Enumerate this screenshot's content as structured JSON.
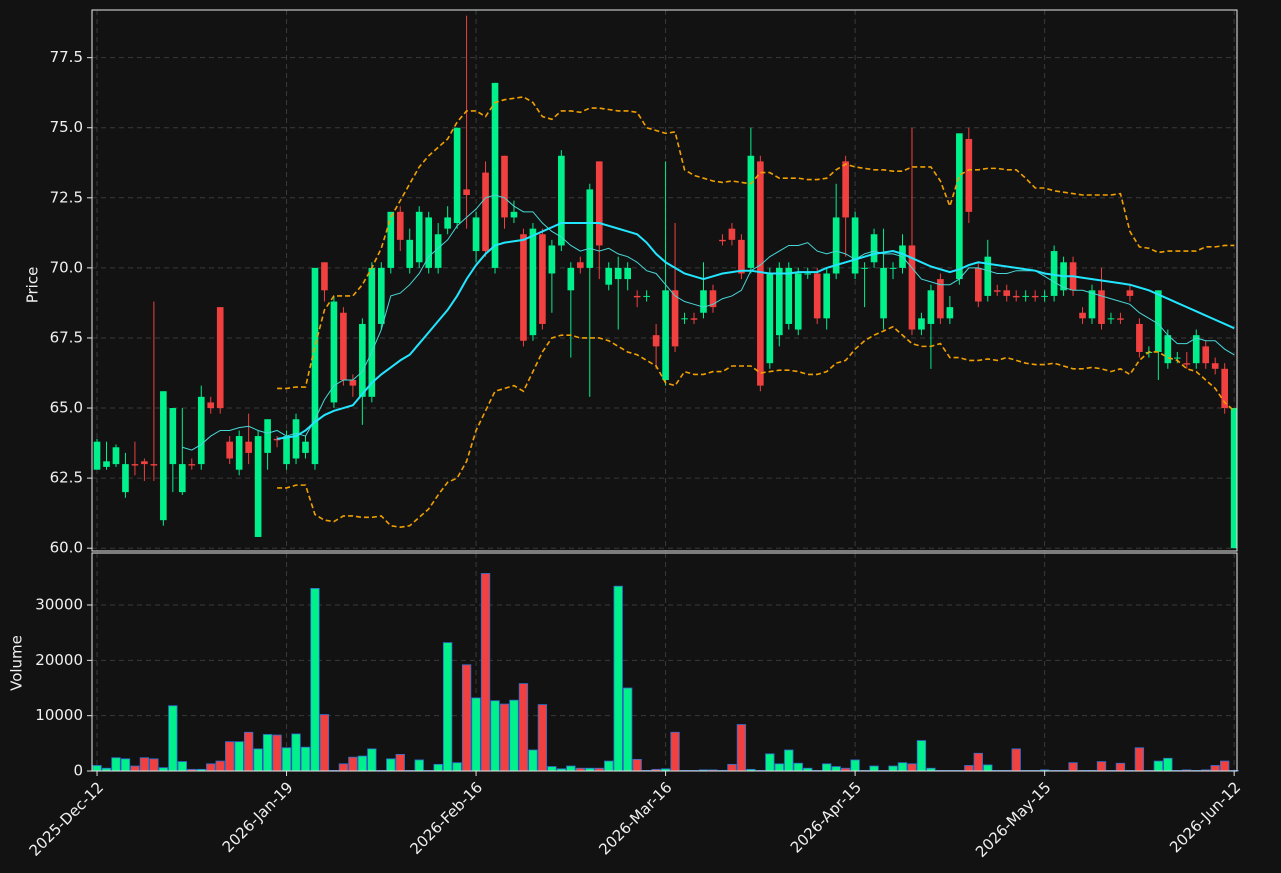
{
  "chart_data": {
    "type": "candlestick",
    "ylabel": "Price",
    "ylim": [
      59.9,
      79.2
    ],
    "yticks": [
      {
        "value": 60,
        "label": "60.0"
      },
      {
        "value": 62.5,
        "label": "62.5"
      },
      {
        "value": 65,
        "label": "65.0"
      },
      {
        "value": 67.5,
        "label": "67.5"
      },
      {
        "value": 70,
        "label": "70.0"
      },
      {
        "value": 72.5,
        "label": "72.5"
      },
      {
        "value": 75,
        "label": "75.0"
      },
      {
        "value": 77.5,
        "label": "77.5"
      }
    ],
    "grid": true,
    "up_color": "#00f08c",
    "down_color": "#f04040",
    "categories": [
      "2025-Dec-12",
      null,
      null,
      null,
      null,
      null,
      null,
      null,
      null,
      null,
      null,
      null,
      null,
      null,
      null,
      null,
      null,
      null,
      null,
      null,
      "2026-Jan-19",
      null,
      null,
      null,
      null,
      null,
      null,
      null,
      null,
      null,
      null,
      null,
      null,
      null,
      null,
      null,
      null,
      null,
      null,
      null,
      "2026-Feb-16",
      null,
      null,
      null,
      null,
      null,
      null,
      null,
      null,
      null,
      null,
      null,
      null,
      null,
      null,
      null,
      null,
      null,
      null,
      null,
      "2026-Mar-16",
      null,
      null,
      null,
      null,
      null,
      null,
      null,
      null,
      null,
      null,
      null,
      null,
      null,
      null,
      null,
      null,
      null,
      null,
      null,
      "2026-Apr-15",
      null,
      null,
      null,
      null,
      null,
      null,
      null,
      null,
      null,
      null,
      null,
      null,
      null,
      null,
      null,
      null,
      null,
      null,
      null,
      "2026-May-15",
      null,
      null,
      null,
      null,
      null,
      null,
      null,
      null,
      null,
      null,
      null,
      null,
      null,
      null,
      null,
      null,
      null,
      null,
      null,
      "2026-Jun-12"
    ],
    "open": [
      62.8,
      62.9,
      63.0,
      62.0,
      63.0,
      63.1,
      63.0,
      61.0,
      63.0,
      62.0,
      63.0,
      63.0,
      65.2,
      68.6,
      63.8,
      62.8,
      63.8,
      60.4,
      63.4,
      63.9,
      63.0,
      63.2,
      63.4,
      63.0,
      70.2,
      65.2,
      68.4,
      66.0,
      65.4,
      65.4,
      68.0,
      70.0,
      72.0,
      70.0,
      70.2,
      70.0,
      70.0,
      71.4,
      71.6,
      72.8,
      70.6,
      73.4,
      70.0,
      74.0,
      71.8,
      71.2,
      67.6,
      71.2,
      69.8,
      70.8,
      69.2,
      70.2,
      70.0,
      73.8,
      69.4,
      69.6,
      69.6,
      69.0,
      69.0,
      67.6,
      66.0,
      69.2,
      68.2,
      68.2,
      68.4,
      69.2,
      71.0,
      71.4,
      71.0,
      70.0,
      73.8,
      66.6,
      67.6,
      68.0,
      67.8,
      69.8,
      69.8,
      68.2,
      69.8,
      73.8,
      69.8,
      70.0,
      70.2,
      68.2,
      70.0,
      70.0,
      70.8,
      67.8,
      68.0,
      69.6,
      68.2,
      69.6,
      74.6,
      70.0,
      69.0,
      69.2,
      69.2,
      69.0,
      69.0,
      69.0,
      69.0,
      69.0,
      69.2,
      70.2,
      68.4,
      68.2,
      69.2,
      68.2,
      68.2,
      69.2,
      68.0,
      67.0,
      67.0,
      66.6,
      66.8,
      66.6,
      66.6,
      67.2,
      66.6,
      66.4,
      60.0
    ],
    "high": [
      63.9,
      63.8,
      63.7,
      63.4,
      63.8,
      63.2,
      68.8,
      65.6,
      65.0,
      65.0,
      63.2,
      65.8,
      65.4,
      68.6,
      64.0,
      64.2,
      64.8,
      64.2,
      64.6,
      64.0,
      64.2,
      64.8,
      64.0,
      70.0,
      70.2,
      69.0,
      68.6,
      66.2,
      68.2,
      70.2,
      70.2,
      72.0,
      72.2,
      71.4,
      72.2,
      72.0,
      71.6,
      72.2,
      75.0,
      79.0,
      72.0,
      73.8,
      76.6,
      74.0,
      72.4,
      71.4,
      71.6,
      71.4,
      71.0,
      74.2,
      70.2,
      70.4,
      73.0,
      73.8,
      70.2,
      70.4,
      70.2,
      69.2,
      69.2,
      68.0,
      73.8,
      71.6,
      68.4,
      68.4,
      70.2,
      69.4,
      71.2,
      71.6,
      71.2,
      75.0,
      74.0,
      70.0,
      70.2,
      70.2,
      70.0,
      70.0,
      70.0,
      70.0,
      73.0,
      74.0,
      72.0,
      70.2,
      71.4,
      71.4,
      70.2,
      71.2,
      75.0,
      68.4,
      69.4,
      69.8,
      69.0,
      74.8,
      75.0,
      70.2,
      71.0,
      69.4,
      69.4,
      69.2,
      69.2,
      69.2,
      69.2,
      70.8,
      70.4,
      70.4,
      68.6,
      69.4,
      70.0,
      68.4,
      68.4,
      69.4,
      68.2,
      67.2,
      69.2,
      67.8,
      67.0,
      67.0,
      67.8,
      67.4,
      66.8,
      66.6,
      65.0
    ],
    "low": [
      62.8,
      62.8,
      62.9,
      61.8,
      62.6,
      62.4,
      62.4,
      60.8,
      62.0,
      61.9,
      62.8,
      62.8,
      64.8,
      64.8,
      63.0,
      62.6,
      63.0,
      60.4,
      62.8,
      63.6,
      62.8,
      63.0,
      63.2,
      62.8,
      68.8,
      65.0,
      65.8,
      65.4,
      64.4,
      65.2,
      67.8,
      69.8,
      70.6,
      69.8,
      70.0,
      69.8,
      69.8,
      71.2,
      71.4,
      71.4,
      70.2,
      70.4,
      69.8,
      71.4,
      71.6,
      67.2,
      67.4,
      67.8,
      68.4,
      70.6,
      66.8,
      69.8,
      65.4,
      69.6,
      69.2,
      67.8,
      69.2,
      68.6,
      68.8,
      66.4,
      65.8,
      67.0,
      68.0,
      68.0,
      68.2,
      68.4,
      70.8,
      70.8,
      69.6,
      69.8,
      65.6,
      66.4,
      67.2,
      67.8,
      67.6,
      69.6,
      68.0,
      67.8,
      69.6,
      70.4,
      69.6,
      68.6,
      70.0,
      67.8,
      69.6,
      69.8,
      67.6,
      67.6,
      66.4,
      68.0,
      68.0,
      69.4,
      71.6,
      68.6,
      68.8,
      69.0,
      68.8,
      68.8,
      68.8,
      68.8,
      68.8,
      68.8,
      69.0,
      69.0,
      68.0,
      68.0,
      67.8,
      68.0,
      68.0,
      68.8,
      66.8,
      66.8,
      66.0,
      66.4,
      66.6,
      66.4,
      66.4,
      66.4,
      66.2,
      64.8,
      60.0
    ],
    "close": [
      63.8,
      63.1,
      63.6,
      63.0,
      62.95,
      63.0,
      62.95,
      65.6,
      65.0,
      63.0,
      62.95,
      65.4,
      65.0,
      65.0,
      63.2,
      64.0,
      63.4,
      64.0,
      64.6,
      63.85,
      64.0,
      64.6,
      63.8,
      70.0,
      69.2,
      68.8,
      66.0,
      65.8,
      68.0,
      70.0,
      70.0,
      72.0,
      71.0,
      71.0,
      72.0,
      71.8,
      71.2,
      71.8,
      75.0,
      72.6,
      71.8,
      70.6,
      76.6,
      71.8,
      72.0,
      67.4,
      71.4,
      68.0,
      70.8,
      74.0,
      70.0,
      70.0,
      72.8,
      70.8,
      70.0,
      70.0,
      70.0,
      68.95,
      69.0,
      67.2,
      69.2,
      67.2,
      68.2,
      68.15,
      69.2,
      68.6,
      70.95,
      71.0,
      69.8,
      74.0,
      65.8,
      69.8,
      70.0,
      70.0,
      69.8,
      69.8,
      68.2,
      69.8,
      71.8,
      71.8,
      71.8,
      70.0,
      71.2,
      70.0,
      70.0,
      70.8,
      67.8,
      68.2,
      69.2,
      68.2,
      68.6,
      74.8,
      72.0,
      68.8,
      70.4,
      69.15,
      69.0,
      68.95,
      69.0,
      68.95,
      69.0,
      70.6,
      70.2,
      69.2,
      68.2,
      69.2,
      68.0,
      68.2,
      68.15,
      69.0,
      67.0,
      67.0,
      69.2,
      67.6,
      66.8,
      66.55,
      67.6,
      66.6,
      66.4,
      65.0,
      65.0
    ],
    "overlays": [
      {
        "color": "#48d8d8",
        "width": 1,
        "dashed": false,
        "values": [
          null,
          null,
          null,
          null,
          null,
          null,
          null,
          null,
          null,
          63.6,
          63.5,
          63.7,
          64.0,
          64.2,
          64.2,
          64.3,
          64.35,
          64.2,
          64.1,
          64.2,
          64.0,
          64.1,
          64.0,
          64.6,
          65.3,
          65.8,
          66.0,
          66.0,
          66.3,
          67.0,
          67.8,
          69.0,
          69.1,
          69.4,
          69.8,
          70.4,
          70.7,
          71.0,
          71.5,
          71.8,
          72.1,
          72.5,
          72.6,
          72.5,
          72.2,
          72.0,
          72.0,
          71.6,
          71.3,
          71.1,
          70.8,
          70.6,
          70.7,
          70.6,
          70.7,
          70.5,
          70.4,
          70.2,
          69.9,
          69.8,
          69.4,
          69.0,
          68.8,
          68.7,
          68.6,
          68.7,
          68.9,
          69.0,
          69.2,
          69.9,
          70.1,
          70.4,
          70.6,
          70.8,
          70.8,
          70.9,
          70.6,
          70.5,
          70.6,
          70.5,
          70.3,
          70.5,
          70.6,
          70.5,
          70.5,
          70.4,
          70.0,
          69.6,
          69.5,
          69.4,
          69.4,
          69.6,
          70.0,
          70.0,
          69.9,
          69.8,
          69.8,
          69.9,
          69.9,
          69.9,
          69.7,
          69.5,
          69.3,
          69.2,
          69.2,
          69.1,
          69.0,
          68.9,
          68.8,
          68.7,
          68.4,
          68.2,
          68.0,
          67.6,
          67.3,
          67.3,
          67.5,
          67.4,
          67.4,
          67.1,
          66.9
        ]
      },
      {
        "color": "#22e6ff",
        "width": 2,
        "dashed": false,
        "values": [
          null,
          null,
          null,
          null,
          null,
          null,
          null,
          null,
          null,
          null,
          null,
          null,
          null,
          null,
          null,
          null,
          null,
          null,
          null,
          63.9,
          63.95,
          64.0,
          64.2,
          64.5,
          64.75,
          64.9,
          65.0,
          65.1,
          65.5,
          65.9,
          66.2,
          66.45,
          66.7,
          66.9,
          67.3,
          67.7,
          68.1,
          68.5,
          69.0,
          69.6,
          70.1,
          70.5,
          70.8,
          70.9,
          70.95,
          71.0,
          71.15,
          71.3,
          71.45,
          71.6,
          71.6,
          71.6,
          71.6,
          71.6,
          71.5,
          71.4,
          71.3,
          71.2,
          70.9,
          70.5,
          70.2,
          70.0,
          69.8,
          69.7,
          69.6,
          69.7,
          69.8,
          69.85,
          69.9,
          69.9,
          69.85,
          69.8,
          69.8,
          69.8,
          69.85,
          69.85,
          69.85,
          70.0,
          70.1,
          70.2,
          70.3,
          70.4,
          70.5,
          70.55,
          70.6,
          70.5,
          70.35,
          70.2,
          70.05,
          69.95,
          69.85,
          69.95,
          70.1,
          70.2,
          70.15,
          70.1,
          70.05,
          70.0,
          69.95,
          69.9,
          69.8,
          69.75,
          69.7,
          69.7,
          69.65,
          69.6,
          69.55,
          69.5,
          69.45,
          69.4,
          69.3,
          69.2,
          69.05,
          68.9,
          68.75,
          68.6,
          68.45,
          68.3,
          68.15,
          68.0,
          67.85
        ]
      },
      {
        "color": "#f0a000",
        "width": 1.6,
        "dashed": true,
        "values": [
          null,
          null,
          null,
          null,
          null,
          null,
          null,
          null,
          null,
          null,
          null,
          null,
          null,
          null,
          null,
          null,
          null,
          null,
          null,
          65.7,
          65.7,
          65.75,
          65.75,
          67.2,
          68.5,
          69.0,
          69.0,
          69.0,
          69.4,
          70.0,
          70.7,
          71.8,
          72.4,
          73.0,
          73.6,
          74.0,
          74.3,
          74.6,
          75.2,
          75.6,
          75.6,
          75.4,
          75.9,
          76.0,
          76.05,
          76.1,
          75.9,
          75.4,
          75.3,
          75.6,
          75.6,
          75.55,
          75.7,
          75.7,
          75.65,
          75.6,
          75.6,
          75.55,
          75.0,
          74.9,
          74.8,
          74.85,
          73.5,
          73.3,
          73.2,
          73.1,
          73.05,
          73.1,
          73.05,
          73.0,
          73.4,
          73.4,
          73.2,
          73.2,
          73.2,
          73.15,
          73.15,
          73.2,
          73.5,
          73.7,
          73.6,
          73.55,
          73.5,
          73.5,
          73.45,
          73.45,
          73.6,
          73.6,
          73.6,
          73.1,
          72.2,
          73.3,
          73.5,
          73.5,
          73.55,
          73.55,
          73.5,
          73.5,
          73.2,
          72.85,
          72.85,
          72.75,
          72.7,
          72.65,
          72.6,
          72.6,
          72.6,
          72.6,
          72.65,
          71.3,
          70.75,
          70.7,
          70.55,
          70.6,
          70.6,
          70.6,
          70.6,
          70.75,
          70.75,
          70.8,
          70.8
        ]
      },
      {
        "color": "#f0a000",
        "width": 1.6,
        "dashed": true,
        "values": [
          null,
          null,
          null,
          null,
          null,
          null,
          null,
          null,
          null,
          null,
          null,
          null,
          null,
          null,
          null,
          null,
          null,
          null,
          null,
          62.15,
          62.15,
          62.25,
          62.25,
          61.2,
          61.0,
          60.95,
          61.15,
          61.15,
          61.1,
          61.1,
          61.15,
          60.8,
          60.75,
          60.8,
          61.1,
          61.4,
          61.9,
          62.35,
          62.5,
          63.1,
          64.2,
          64.9,
          65.6,
          65.7,
          65.8,
          65.6,
          66.3,
          67.0,
          67.5,
          67.6,
          67.6,
          67.5,
          67.5,
          67.5,
          67.4,
          67.2,
          67.0,
          66.9,
          66.7,
          66.5,
          65.9,
          65.8,
          66.3,
          66.2,
          66.2,
          66.3,
          66.3,
          66.5,
          66.5,
          66.5,
          66.25,
          66.3,
          66.35,
          66.35,
          66.3,
          66.2,
          66.2,
          66.3,
          66.6,
          66.7,
          67.1,
          67.4,
          67.6,
          67.75,
          67.9,
          67.6,
          67.3,
          67.2,
          67.2,
          67.3,
          66.8,
          66.8,
          66.7,
          66.7,
          66.75,
          66.7,
          66.8,
          66.7,
          66.6,
          66.55,
          66.55,
          66.6,
          66.5,
          66.4,
          66.4,
          66.45,
          66.4,
          66.3,
          66.4,
          66.2,
          66.7,
          67.0,
          67.0,
          66.8,
          66.7,
          66.4,
          66.3,
          66.0,
          65.7,
          65.2,
          64.9
        ]
      }
    ],
    "volume": {
      "ylabel": "Volume",
      "ylim": [
        0,
        39400
      ],
      "yticks": [
        0,
        10000,
        20000,
        30000
      ],
      "edge_color": "#2f6fd0",
      "values": [
        1000,
        500,
        2400,
        2200,
        900,
        2400,
        2200,
        600,
        11800,
        1700,
        300,
        300,
        1300,
        1800,
        5300,
        5300,
        7000,
        4000,
        6600,
        6500,
        4200,
        6700,
        4300,
        33000,
        10200,
        100,
        1300,
        2500,
        2700,
        4000,
        100,
        2200,
        3000,
        100,
        2000,
        100,
        1200,
        23200,
        1500,
        19200,
        13200,
        35700,
        12700,
        12100,
        12800,
        15800,
        3800,
        12000,
        800,
        400,
        900,
        500,
        500,
        500,
        1800,
        33400,
        15000,
        2100,
        100,
        300,
        400,
        7000,
        100,
        100,
        200,
        200,
        100,
        1200,
        8400,
        300,
        100,
        3100,
        1300,
        3800,
        1400,
        500,
        100,
        1300,
        800,
        500,
        2000,
        100,
        900,
        100,
        900,
        1500,
        1300,
        5500,
        500,
        100,
        100,
        100,
        1000,
        3200,
        1100,
        100,
        100,
        4000,
        100,
        100,
        200,
        100,
        100,
        1500,
        100,
        100,
        1700,
        100,
        1400,
        100,
        4200,
        100,
        1800,
        2300,
        100,
        200,
        100,
        200,
        1000,
        1800,
        100
      ]
    }
  }
}
